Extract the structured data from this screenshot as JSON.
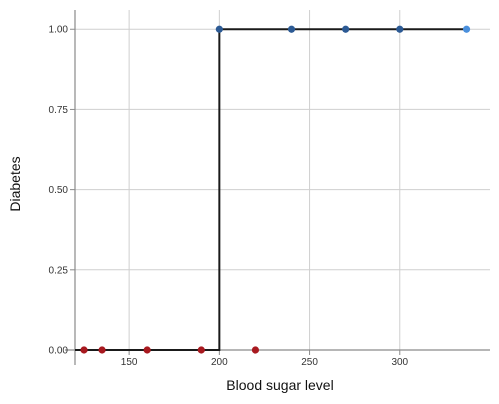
{
  "chart_data": {
    "type": "scatter",
    "xlabel": "Blood sugar level",
    "ylabel": "Diabetes",
    "xlim": [
      120,
      350
    ],
    "ylim": [
      0,
      1.06
    ],
    "x_ticks": [
      150,
      200,
      250,
      300
    ],
    "x_tick_labels": [
      "150",
      "200",
      "250",
      "300"
    ],
    "y_ticks": [
      0,
      0.25,
      0.5,
      0.75,
      1.0
    ],
    "y_tick_labels": [
      "0.00",
      "0.25",
      "0.50",
      "0.75",
      "1.00"
    ],
    "grid": true,
    "series": [
      {
        "color": "#a8191f",
        "points": [
          {
            "x": 125,
            "y": 0
          },
          {
            "x": 135,
            "y": 0
          },
          {
            "x": 160,
            "y": 0
          },
          {
            "x": 190,
            "y": 0
          },
          {
            "x": 220,
            "y": 0
          }
        ]
      },
      {
        "color": "#2c5a94",
        "points": [
          {
            "x": 200,
            "y": 1
          },
          {
            "x": 240,
            "y": 1
          },
          {
            "x": 270,
            "y": 1
          },
          {
            "x": 300,
            "y": 1
          },
          {
            "x": 337,
            "y": 1,
            "color": "#4a8fdc"
          }
        ]
      }
    ],
    "step_line": {
      "color": "#1a1a1a",
      "points": [
        {
          "x": 120,
          "y": 0
        },
        {
          "x": 200,
          "y": 0
        },
        {
          "x": 200,
          "y": 1
        },
        {
          "x": 337,
          "y": 1
        }
      ]
    }
  }
}
